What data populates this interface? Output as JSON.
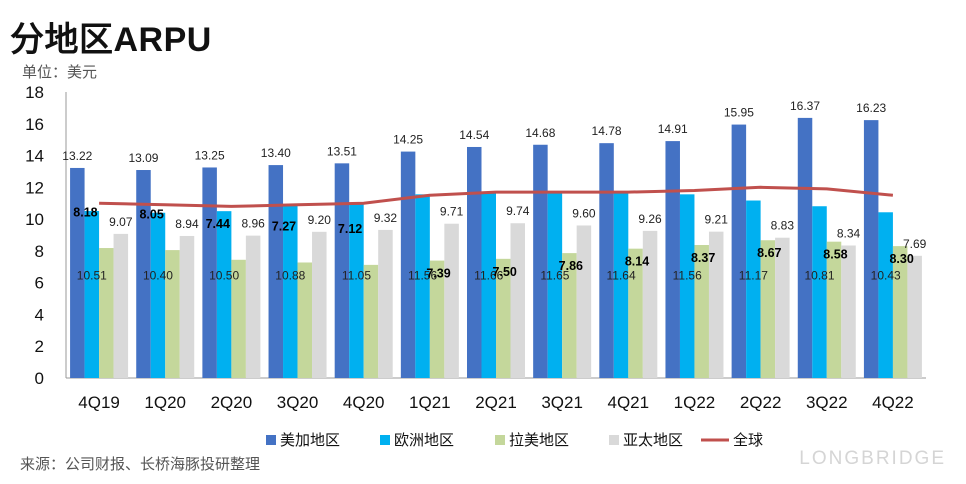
{
  "title": "分地区ARPU",
  "unit_label": "单位：美元",
  "source": "来源：公司财报、长桥海豚投研整理",
  "watermark": "LONGBRIDGE",
  "chart_data": {
    "type": "bar",
    "categories": [
      "4Q19",
      "1Q20",
      "2Q20",
      "3Q20",
      "4Q20",
      "1Q21",
      "2Q21",
      "3Q21",
      "4Q21",
      "1Q22",
      "2Q22",
      "3Q22",
      "4Q22"
    ],
    "ylim": [
      0,
      18
    ],
    "yticks": [
      0,
      2,
      4,
      6,
      8,
      10,
      12,
      14,
      16,
      18
    ],
    "series": [
      {
        "name": "美加地区",
        "color": "#4472c4",
        "values": [
          13.22,
          13.09,
          13.25,
          13.4,
          13.51,
          14.25,
          14.54,
          14.68,
          14.78,
          14.91,
          15.95,
          16.37,
          16.23
        ],
        "labels": [
          "13.22",
          "13.09",
          "13.25",
          "13.40",
          "13.51",
          "14.25",
          "14.54",
          "14.68",
          "14.78",
          "14.91",
          "15.95",
          "16.37",
          "16.23"
        ]
      },
      {
        "name": "欧洲地区",
        "color": "#00b0f0",
        "values": [
          10.51,
          10.4,
          10.5,
          10.88,
          11.05,
          11.56,
          11.66,
          11.65,
          11.64,
          11.56,
          11.17,
          10.81,
          10.43
        ],
        "labels": [
          "10.51",
          "10.40",
          "10.50",
          "10.88",
          "11.05",
          "11.56",
          "11.66",
          "11.65",
          "11.64",
          "11.56",
          "11.17",
          "10.81",
          "10.43"
        ]
      },
      {
        "name": "拉美地区",
        "color": "#c4d79b",
        "values": [
          8.18,
          8.05,
          7.44,
          7.27,
          7.12,
          7.39,
          7.5,
          7.86,
          8.14,
          8.37,
          8.67,
          8.58,
          8.3
        ],
        "labels": [
          "8.18",
          "8.05",
          "7.44",
          "7.27",
          "7.12",
          "7.39",
          "7.50",
          "7.86",
          "8.14",
          "8.37",
          "8.67",
          "8.58",
          "8.30"
        ]
      },
      {
        "name": "亚太地区",
        "color": "#d9d9d9",
        "values": [
          9.07,
          8.94,
          8.96,
          9.2,
          9.32,
          9.71,
          9.74,
          9.6,
          9.26,
          9.21,
          8.83,
          8.34,
          7.69
        ],
        "labels": [
          "9.07",
          "8.94",
          "8.96",
          "9.20",
          "9.32",
          "9.71",
          "9.74",
          "9.60",
          "9.26",
          "9.21",
          "8.83",
          "8.34",
          "7.69"
        ]
      }
    ],
    "line": {
      "name": "全球",
      "color": "#c0504d",
      "values": [
        11.0,
        10.9,
        10.8,
        10.9,
        11.0,
        11.5,
        11.7,
        11.7,
        11.7,
        11.8,
        12.0,
        11.9,
        11.5
      ]
    },
    "legend_position": "bottom",
    "grid": false
  }
}
